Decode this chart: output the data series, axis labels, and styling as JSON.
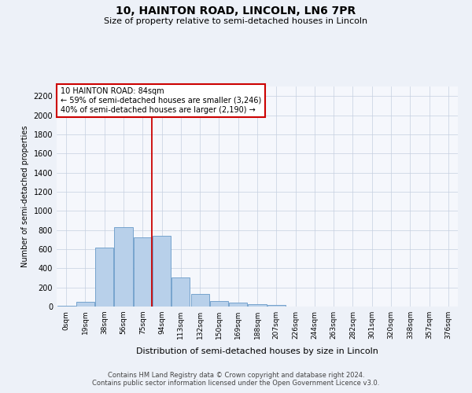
{
  "title": "10, HAINTON ROAD, LINCOLN, LN6 7PR",
  "subtitle": "Size of property relative to semi-detached houses in Lincoln",
  "xlabel": "Distribution of semi-detached houses by size in Lincoln",
  "ylabel": "Number of semi-detached properties",
  "bar_values": [
    5,
    50,
    620,
    830,
    720,
    740,
    300,
    135,
    60,
    38,
    22,
    15,
    0,
    0,
    0,
    0,
    0,
    0,
    0,
    0,
    0
  ],
  "x_labels": [
    "0sqm",
    "19sqm",
    "38sqm",
    "56sqm",
    "75sqm",
    "94sqm",
    "113sqm",
    "132sqm",
    "150sqm",
    "169sqm",
    "188sqm",
    "207sqm",
    "226sqm",
    "244sqm",
    "263sqm",
    "282sqm",
    "301sqm",
    "320sqm",
    "338sqm",
    "357sqm",
    "376sqm"
  ],
  "bar_color": "#b8d0ea",
  "bar_edge_color": "#6899c8",
  "vline_x": 4.5,
  "vline_color": "#cc0000",
  "annotation_text": "10 HAINTON ROAD: 84sqm\n← 59% of semi-detached houses are smaller (3,246)\n40% of semi-detached houses are larger (2,190) →",
  "annotation_box_facecolor": "#ffffff",
  "annotation_box_edgecolor": "#cc0000",
  "ylim": [
    0,
    2300
  ],
  "yticks": [
    0,
    200,
    400,
    600,
    800,
    1000,
    1200,
    1400,
    1600,
    1800,
    2000,
    2200
  ],
  "footer_line1": "Contains HM Land Registry data © Crown copyright and database right 2024.",
  "footer_line2": "Contains public sector information licensed under the Open Government Licence v3.0.",
  "bg_color": "#edf1f8",
  "plot_bg_color": "#f5f7fc"
}
